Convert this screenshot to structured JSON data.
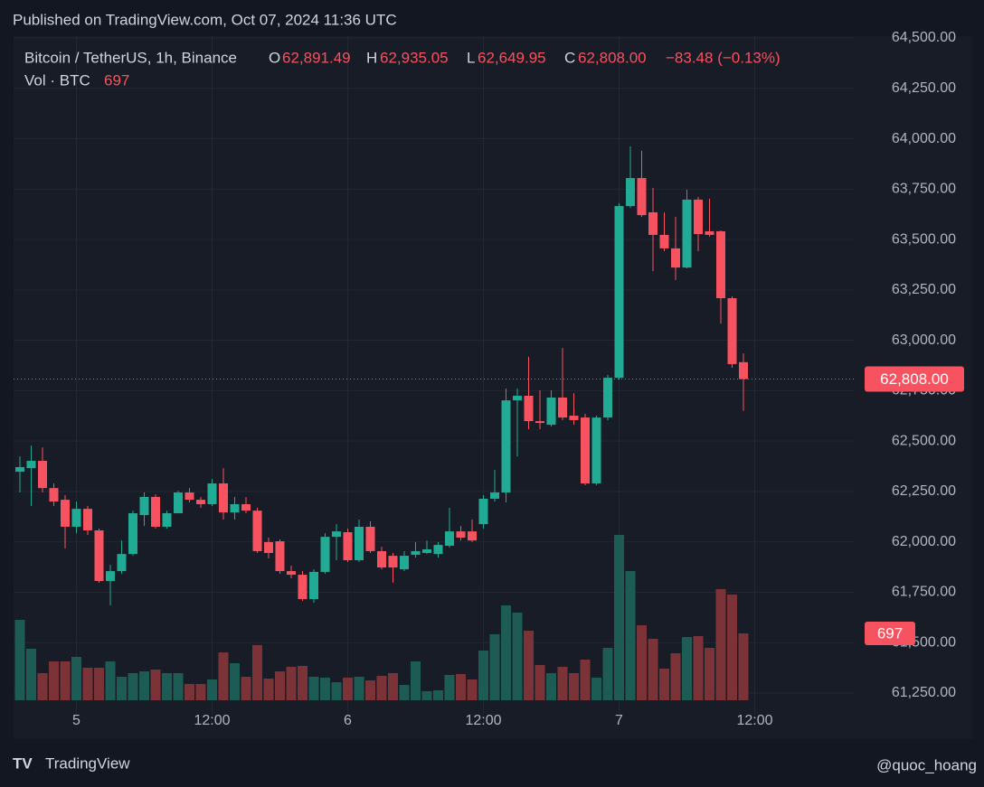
{
  "header": {
    "published": "Published on TradingView.com, Oct 07, 2024 11:36 UTC",
    "symbol": "Bitcoin / TetherUS, 1h, Binance",
    "o_label": "O",
    "o": "62,891.49",
    "h_label": "H",
    "h": "62,935.05",
    "l_label": "L",
    "l": "62,649.95",
    "c_label": "C",
    "c": "62,808.00",
    "change": "−83.48 (−0.13%)",
    "vol_label": "Vol · BTC",
    "vol": "697"
  },
  "footer": {
    "brand": "TradingView",
    "author": "@quoc_hoang"
  },
  "chart_data": {
    "type": "candlestick",
    "up_color": "#22ab94",
    "down_color": "#f7525f",
    "up_volume_color": "#1d5c55",
    "down_volume_color": "#7b3338",
    "grid": true,
    "x": [
      0,
      1,
      2,
      3,
      4,
      5,
      6,
      7,
      8,
      9,
      10,
      11,
      12,
      13,
      14,
      15,
      16,
      17,
      18,
      19,
      20,
      21,
      22,
      23,
      24,
      25,
      26,
      27,
      28,
      29,
      30,
      31,
      32,
      33,
      34,
      35,
      36,
      37,
      38,
      39,
      40,
      41,
      42,
      43,
      44,
      45,
      46,
      47,
      48,
      49,
      50,
      51,
      52,
      53,
      54,
      55,
      56,
      57,
      58,
      59,
      60,
      61,
      62,
      63,
      64
    ],
    "open": [
      62348,
      62366,
      62402,
      62267,
      62209,
      62075,
      62164,
      62057,
      61806,
      61855,
      61940,
      62133,
      62223,
      62075,
      62142,
      62245,
      62209,
      62187,
      62290,
      62146,
      62187,
      62155,
      61999,
      62003,
      61855,
      61837,
      61716,
      61851,
      62025,
      62048,
      61909,
      62075,
      61954,
      61931,
      61864,
      61936,
      61945,
      61940,
      61981,
      62052,
      62052,
      62088,
      62214,
      62245,
      62702,
      62725,
      62599,
      62581,
      62716,
      62626,
      62617,
      62290,
      62617,
      62814,
      63666,
      63805,
      63635,
      63523,
      63456,
      63361,
      63698,
      63541,
      63541,
      63209,
      62891.49
    ],
    "high": [
      62424,
      62478,
      62469,
      62290,
      62232,
      62200,
      62178,
      62066,
      61886,
      62007,
      62155,
      62245,
      62236,
      62155,
      62254,
      62267,
      62223,
      62312,
      62366,
      62223,
      62223,
      62169,
      62021,
      62012,
      61882,
      61855,
      61864,
      62043,
      62088,
      62066,
      62111,
      62102,
      61976,
      61945,
      61954,
      61999,
      62007,
      61999,
      62169,
      62079,
      62111,
      62232,
      62357,
      62761,
      62761,
      62918,
      62752,
      62752,
      62962,
      62738,
      62635,
      62626,
      62828,
      63680,
      63962,
      63940,
      63756,
      63635,
      63612,
      63747,
      63711,
      63702,
      63545,
      63218,
      62935.05
    ],
    "low": [
      62245,
      62178,
      62245,
      62178,
      61967,
      62043,
      62034,
      61797,
      61685,
      61842,
      61931,
      62079,
      62066,
      62066,
      62142,
      62196,
      62169,
      62178,
      62111,
      62111,
      62142,
      61945,
      61918,
      61842,
      61819,
      61707,
      61698,
      61842,
      61909,
      61900,
      61900,
      61945,
      61864,
      61797,
      61855,
      61922,
      61940,
      61922,
      61972,
      62007,
      61999,
      62066,
      62200,
      62196,
      62424,
      62559,
      62559,
      62572,
      62604,
      62581,
      62281,
      62281,
      62604,
      62805,
      63657,
      63612,
      63343,
      63442,
      63299,
      63357,
      63442,
      63514,
      63083,
      62864,
      62649.95
    ],
    "close": [
      62371,
      62402,
      62267,
      62200,
      62075,
      62164,
      62057,
      61806,
      61855,
      61940,
      62142,
      62223,
      62075,
      62142,
      62245,
      62209,
      62187,
      62290,
      62146,
      62187,
      62155,
      61954,
      61945,
      61855,
      61837,
      61716,
      61851,
      62025,
      62052,
      61909,
      62075,
      61954,
      61873,
      61873,
      61931,
      61954,
      61963,
      61985,
      62052,
      62021,
      62007,
      62214,
      62245,
      62702,
      62725,
      62599,
      62590,
      62716,
      62617,
      62604,
      62290,
      62617,
      62814,
      63666,
      63805,
      63621,
      63523,
      63456,
      63361,
      63698,
      63527,
      63523,
      63209,
      62882,
      62808.0
    ],
    "volume": [
      838,
      537,
      283,
      405,
      405,
      452,
      339,
      339,
      405,
      245,
      283,
      301,
      320,
      283,
      283,
      170,
      170,
      217,
      499,
      386,
      245,
      575,
      226,
      301,
      349,
      358,
      245,
      236,
      188,
      236,
      245,
      207,
      254,
      283,
      160,
      405,
      94,
      104,
      264,
      273,
      217,
      518,
      688,
      989,
      914,
      725,
      367,
      283,
      349,
      283,
      424,
      236,
      546,
      1724,
      1347,
      782,
      641,
      330,
      490,
      659,
      669,
      546,
      1159,
      1102,
      697
    ],
    "last_price_label": "62,808.00",
    "last_volume_label": "697",
    "xlim": [
      -0.56,
      73.84
    ],
    "xticks": [
      {
        "value": 5,
        "label": "5"
      },
      {
        "value": 17,
        "label": "12:00"
      },
      {
        "value": 29,
        "label": "6"
      },
      {
        "value": 41,
        "label": "12:00"
      },
      {
        "value": 53,
        "label": "7"
      },
      {
        "value": 65,
        "label": "12:00"
      }
    ],
    "ylim": [
      61147,
      64509
    ],
    "yticks": [
      {
        "value": 61250,
        "label": "61,250.00"
      },
      {
        "value": 61500,
        "label": "61,500.00"
      },
      {
        "value": 61750,
        "label": "61,750.00"
      },
      {
        "value": 62000,
        "label": "62,000.00"
      },
      {
        "value": 62250,
        "label": "62,250.00"
      },
      {
        "value": 62500,
        "label": "62,500.00"
      },
      {
        "value": 62750,
        "label": "62,750.00"
      },
      {
        "value": 63000,
        "label": "63,000.00"
      },
      {
        "value": 63250,
        "label": "63,250.00"
      },
      {
        "value": 63500,
        "label": "63,500.00"
      },
      {
        "value": 63750,
        "label": "63,750.00"
      },
      {
        "value": 64000,
        "label": "64,000.00"
      },
      {
        "value": 64250,
        "label": "64,250.00"
      },
      {
        "value": 64500,
        "label": "64,500.00"
      }
    ]
  }
}
